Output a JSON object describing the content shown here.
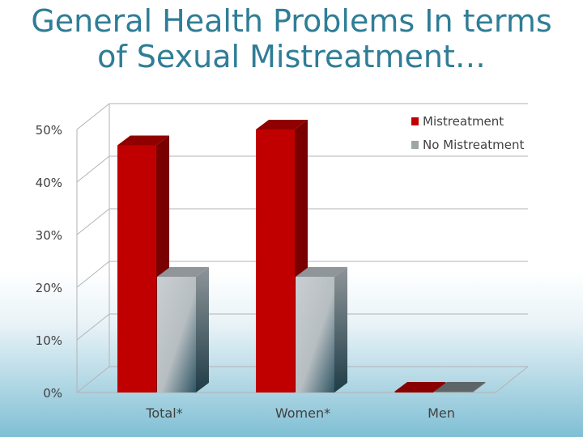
{
  "slide": {
    "title_line1": "General Health Problems In terms",
    "title_line2": "of Sexual Mistreatment…"
  },
  "chart_data": {
    "type": "bar",
    "title": "",
    "xlabel": "",
    "ylabel": "",
    "categories": [
      "Total*",
      "Women*",
      "Men"
    ],
    "series": [
      {
        "name": "Mistreatment",
        "values": [
          47,
          50,
          0
        ],
        "color": "#c00000"
      },
      {
        "name": "No Mistreatment",
        "values": [
          22,
          22,
          0
        ],
        "color": "#b9bfc3"
      }
    ],
    "ylim": [
      0,
      50
    ],
    "yticks": [
      "0%",
      "10%",
      "20%",
      "30%",
      "40%",
      "50%"
    ],
    "grid": true,
    "legend": "top-right",
    "style": "3d"
  }
}
